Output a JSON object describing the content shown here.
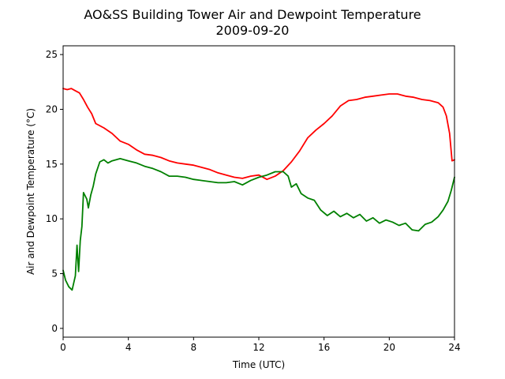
{
  "chart_data": {
    "type": "line",
    "title": "AO&SS Building Tower Air and Dewpoint Temperature",
    "subtitle": "2009-09-20",
    "xlabel": "Time (UTC)",
    "ylabel": "Air and Dewpoint Temperature (°C)",
    "xlim": [
      0,
      24
    ],
    "ylim": [
      -0.8,
      25.8
    ],
    "xticks": [
      0,
      4,
      8,
      12,
      16,
      20,
      24
    ],
    "yticks": [
      0,
      5,
      10,
      15,
      20,
      25
    ],
    "grid": false,
    "legend": "none",
    "series": [
      {
        "color": "#ff0000",
        "x": [
          0,
          0.25,
          0.5,
          0.75,
          1.0,
          1.25,
          1.5,
          1.75,
          2.0,
          2.5,
          3.0,
          3.5,
          4.0,
          4.5,
          5.0,
          5.5,
          6.0,
          6.5,
          7.0,
          7.5,
          8.0,
          8.5,
          9.0,
          9.5,
          10.0,
          10.5,
          11.0,
          11.5,
          12.0,
          12.5,
          13.0,
          13.5,
          14.0,
          14.5,
          15.0,
          15.5,
          16.0,
          16.5,
          17.0,
          17.5,
          18.0,
          18.5,
          19.0,
          19.5,
          20.0,
          20.5,
          21.0,
          21.5,
          22.0,
          22.5,
          23.0,
          23.3,
          23.5,
          23.7,
          23.85,
          24.0
        ],
        "y": [
          21.9,
          21.8,
          21.9,
          21.7,
          21.5,
          20.9,
          20.2,
          19.6,
          18.7,
          18.3,
          17.8,
          17.1,
          16.8,
          16.3,
          15.9,
          15.8,
          15.6,
          15.3,
          15.1,
          15.0,
          14.9,
          14.7,
          14.5,
          14.2,
          14.0,
          13.8,
          13.7,
          13.9,
          14.0,
          13.6,
          13.9,
          14.4,
          15.2,
          16.2,
          17.4,
          18.1,
          18.7,
          19.4,
          20.3,
          20.8,
          20.9,
          21.1,
          21.2,
          21.3,
          21.4,
          21.4,
          21.2,
          21.1,
          20.9,
          20.8,
          20.6,
          20.2,
          19.4,
          17.8,
          15.3,
          15.4
        ]
      },
      {
        "color": "#008000",
        "x": [
          0,
          0.15,
          0.35,
          0.55,
          0.75,
          0.85,
          0.95,
          1.05,
          1.15,
          1.25,
          1.35,
          1.45,
          1.55,
          1.7,
          1.85,
          2.0,
          2.25,
          2.5,
          2.75,
          3.0,
          3.5,
          4.0,
          4.5,
          5.0,
          5.5,
          6.0,
          6.5,
          7.0,
          7.5,
          8.0,
          8.5,
          9.0,
          9.5,
          10.0,
          10.5,
          11.0,
          11.5,
          12.0,
          12.5,
          13.0,
          13.5,
          13.8,
          14.0,
          14.3,
          14.6,
          15.0,
          15.4,
          15.8,
          16.2,
          16.6,
          17.0,
          17.4,
          17.8,
          18.2,
          18.6,
          19.0,
          19.4,
          19.8,
          20.2,
          20.6,
          21.0,
          21.4,
          21.8,
          22.2,
          22.6,
          23.0,
          23.3,
          23.6,
          23.8,
          24.0
        ],
        "y": [
          5.3,
          4.4,
          3.8,
          3.5,
          4.8,
          7.6,
          5.2,
          8.0,
          9.3,
          12.4,
          12.1,
          11.8,
          11.0,
          12.2,
          13.0,
          14.1,
          15.2,
          15.4,
          15.1,
          15.3,
          15.5,
          15.3,
          15.1,
          14.8,
          14.6,
          14.3,
          13.9,
          13.9,
          13.8,
          13.6,
          13.5,
          13.4,
          13.3,
          13.3,
          13.4,
          13.1,
          13.5,
          13.8,
          14.0,
          14.3,
          14.3,
          13.9,
          12.9,
          13.2,
          12.3,
          11.9,
          11.7,
          10.8,
          10.3,
          10.7,
          10.2,
          10.5,
          10.1,
          10.4,
          9.8,
          10.1,
          9.6,
          9.9,
          9.7,
          9.4,
          9.6,
          9.0,
          8.9,
          9.5,
          9.7,
          10.2,
          10.8,
          11.6,
          12.6,
          13.8
        ]
      }
    ]
  }
}
